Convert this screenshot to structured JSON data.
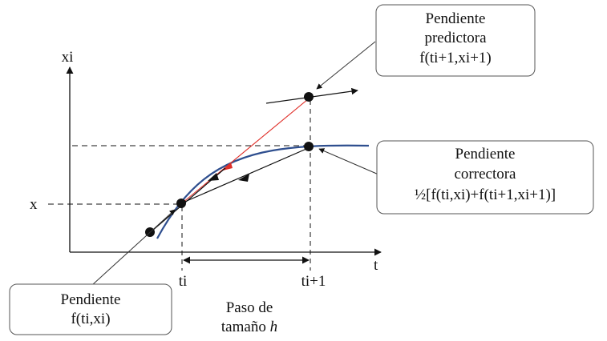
{
  "axes": {
    "y_label": "xi",
    "x_label": "t",
    "y_level_label": "x",
    "tick_ti": "ti",
    "tick_ti1": "ti+1"
  },
  "step": {
    "line1": "Paso de",
    "line2_prefix": "tamaño ",
    "line2_var": "h"
  },
  "callouts": {
    "predictor": {
      "line1": "Pendiente",
      "line2": "predictora",
      "line3": "f(ti+1,xi+1)"
    },
    "corrector": {
      "line1": "Pendiente",
      "line2": "correctora",
      "line3": "½[f(ti,xi)+f(ti+1,xi+1)]"
    },
    "initial": {
      "line1": "Pendiente",
      "line2": "f(ti,xi)"
    }
  },
  "colors": {
    "curve": "#2f4f8f",
    "predictor_line": "#e0302a",
    "ink": "#111111",
    "box_border": "#555555"
  }
}
